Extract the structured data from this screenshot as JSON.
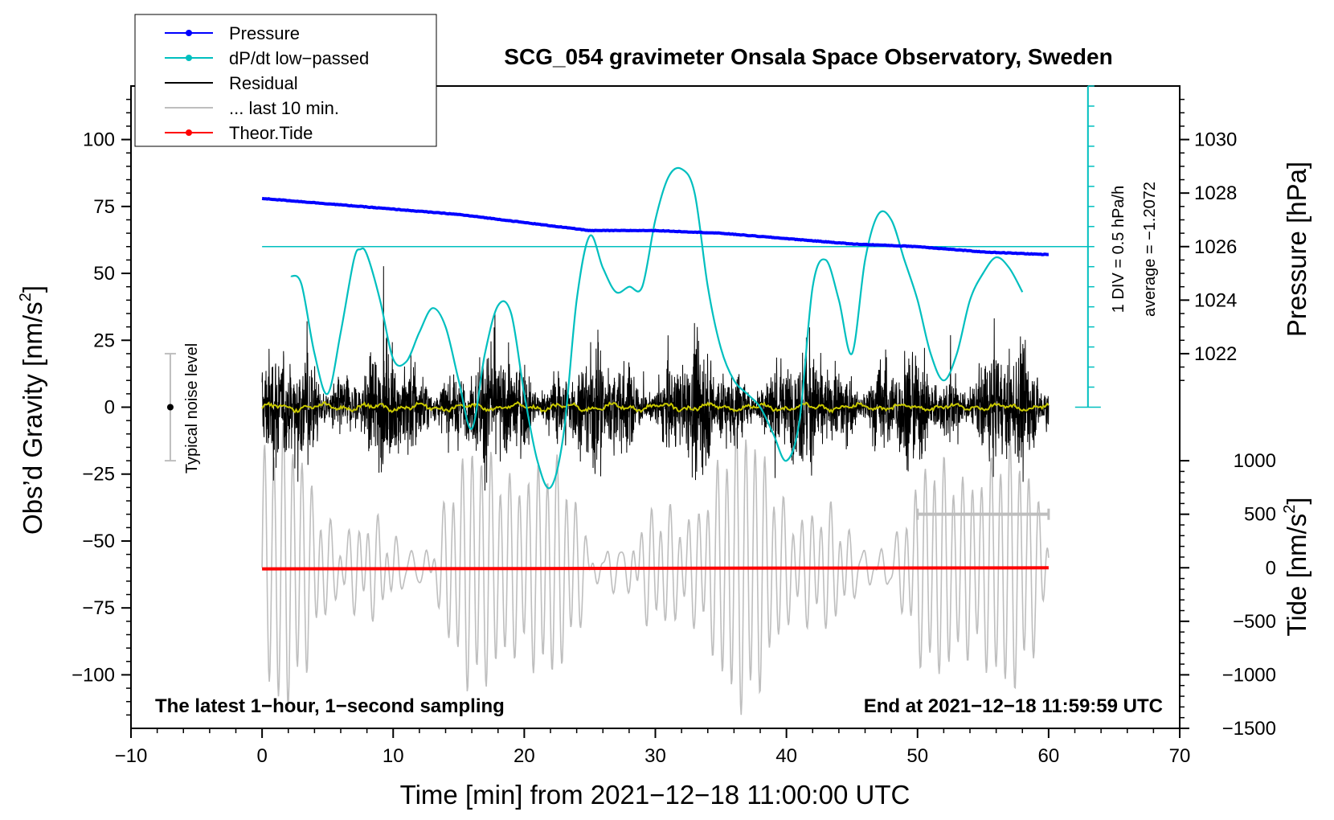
{
  "chart_data": {
    "type": "line",
    "title": "SCG_054 gravimeter Onsala Space Observatory, Sweden",
    "xlabel": "Time [min] from 2021−12−18 11:00:00 UTC",
    "ylabel_left": "Obs’d Gravity [nm/s",
    "ylabel_left_sup": "2",
    "ylabel_left_end": "]",
    "ylabel_right_pressure": "Pressure [hPa]",
    "ylabel_right_tide": "Tide [nm/s",
    "ylabel_right_tide_sup": "2",
    "ylabel_right_tide_end": "]",
    "xlim": [
      -10,
      70
    ],
    "ylim_left": [
      -120,
      120
    ],
    "x_ticks": [
      "−10",
      "0",
      "10",
      "20",
      "30",
      "40",
      "50",
      "60",
      "70"
    ],
    "x_tick_values": [
      -10,
      0,
      10,
      20,
      30,
      40,
      50,
      60,
      70
    ],
    "y_left_ticks": [
      "100",
      "75",
      "50",
      "25",
      "0",
      "−25",
      "−50",
      "−75",
      "−100"
    ],
    "y_left_tick_values": [
      100,
      75,
      50,
      25,
      0,
      -25,
      -50,
      -75,
      -100
    ],
    "pressure_ticks": [
      "1030",
      "1028",
      "1026",
      "1024",
      "1022"
    ],
    "pressure_tick_values": [
      1030,
      1028,
      1026,
      1024,
      1022
    ],
    "pressure_axis_map": {
      "p1030": 100,
      "p1022": 20
    },
    "tide_ticks": [
      "1000",
      "500",
      "0",
      "−500",
      "−1000",
      "−1500"
    ],
    "tide_tick_values": [
      1000,
      500,
      0,
      -500,
      -1000,
      -1500
    ],
    "tide_axis_map": {
      "t1000": -20,
      "t_minus1500": -120
    },
    "legend": [
      {
        "label": "Pressure",
        "color": "#0000ff",
        "marker": true
      },
      {
        "label": "dP/dt low−passed",
        "color": "#00bfbf",
        "marker": true
      },
      {
        "label": "Residual",
        "color": "#000000",
        "marker": false
      },
      {
        "label": "... last 10 min.",
        "color": "#bebebe",
        "marker": false
      },
      {
        "label": "Theor.Tide",
        "color": "#ff0000",
        "marker": true
      }
    ],
    "series": [
      {
        "name": "Pressure",
        "color": "#0000ff",
        "unit": "hPa",
        "x": [
          0,
          5,
          10,
          15,
          20,
          25,
          30,
          35,
          40,
          45,
          50,
          55,
          60
        ],
        "values": [
          1027.8,
          1027.6,
          1027.4,
          1027.2,
          1026.9,
          1026.6,
          1026.6,
          1026.5,
          1026.3,
          1026.1,
          1026.0,
          1025.8,
          1025.7
        ]
      },
      {
        "name": "dP/dt low−passed",
        "color": "#00bfbf",
        "unit": "nm/s2-equivalent",
        "x": [
          2.2,
          3,
          4,
          5,
          6,
          7,
          7.5,
          8,
          9,
          10,
          11,
          12,
          13,
          14,
          15,
          16,
          17,
          18,
          19,
          20,
          21,
          22,
          23,
          24,
          25,
          26,
          27,
          28,
          29,
          30,
          31,
          32,
          33,
          34,
          35,
          36,
          37,
          38,
          39,
          40,
          41,
          42,
          43,
          44,
          45,
          46,
          47,
          48,
          49,
          50,
          51,
          52,
          53,
          54,
          55,
          56,
          57,
          58
        ],
        "values": [
          49,
          46,
          20,
          5,
          28,
          55,
          59,
          57,
          40,
          18,
          17,
          28,
          37,
          30,
          10,
          -8,
          20,
          38,
          35,
          5,
          -20,
          -30,
          -10,
          40,
          64,
          52,
          43,
          45,
          45,
          70,
          86,
          89,
          80,
          45,
          22,
          10,
          5,
          0,
          -10,
          -20,
          -5,
          45,
          55,
          40,
          20,
          55,
          72,
          70,
          55,
          40,
          20,
          10,
          20,
          40,
          50,
          56,
          52,
          43
        ]
      },
      {
        "name": "Theor.Tide",
        "color": "#ff0000",
        "unit": "nm/s2",
        "x": [
          0,
          20,
          40,
          60
        ],
        "values": [
          -10,
          -7,
          -3,
          0
        ]
      }
    ],
    "reference_line": {
      "label": "average = −1.2072",
      "value": 60
    },
    "scale_bar": {
      "label": "1 DIV = 0.5 hPa/h",
      "x": 63,
      "ylim": [
        0,
        120
      ],
      "div_step": 7.5
    },
    "last10_marker": {
      "x": [
        50,
        60
      ],
      "y": -40
    },
    "noise_bar": {
      "label": "Typical noise level",
      "x": -7,
      "ylim": [
        -20,
        20
      ]
    },
    "annotation_left": "The latest 1−hour, 1−second sampling",
    "annotation_right": "End at 2021−12−18 11:59:59 UTC"
  }
}
